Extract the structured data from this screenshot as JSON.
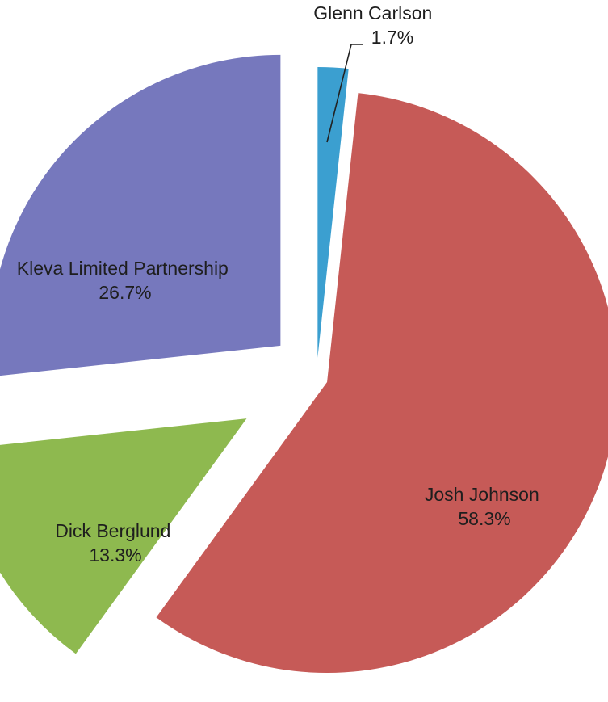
{
  "chart_data": {
    "type": "pie",
    "title": "",
    "exploded": true,
    "start_angle_deg": 0,
    "direction": "clockwise",
    "slices": [
      {
        "name": "Glenn Carlson",
        "value": 1.7,
        "label": "1.7%",
        "color": "#3b9fd0"
      },
      {
        "name": "Josh Johnson",
        "value": 58.3,
        "label": "58.3%",
        "color": "#c65a57"
      },
      {
        "name": "Dick Berglund",
        "value": 13.3,
        "label": "13.3%",
        "color": "#8eb94f"
      },
      {
        "name": "Kleva Limited Partnership",
        "value": 26.7,
        "label": "26.7%",
        "color": "#7678bd"
      }
    ]
  }
}
